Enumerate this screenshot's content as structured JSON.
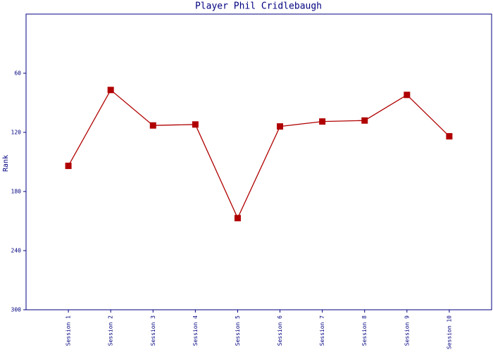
{
  "chart_data": {
    "type": "line",
    "title": "Player Phil Cridlebaugh",
    "y_label": "Rank",
    "categories": [
      "Session 1",
      "Session 2",
      "Session 3",
      "Session 4",
      "Session 5",
      "Session 6",
      "Session 7",
      "Session 8",
      "Session 9",
      "Session 10"
    ],
    "series": [
      {
        "name": "Rank",
        "color": "#b00000",
        "values": [
          154,
          77,
          113,
          112,
          207,
          114,
          109,
          108,
          82,
          124
        ]
      }
    ],
    "ylim": [
      300,
      0
    ],
    "yticks": [
      60,
      120,
      180,
      240,
      300
    ]
  }
}
